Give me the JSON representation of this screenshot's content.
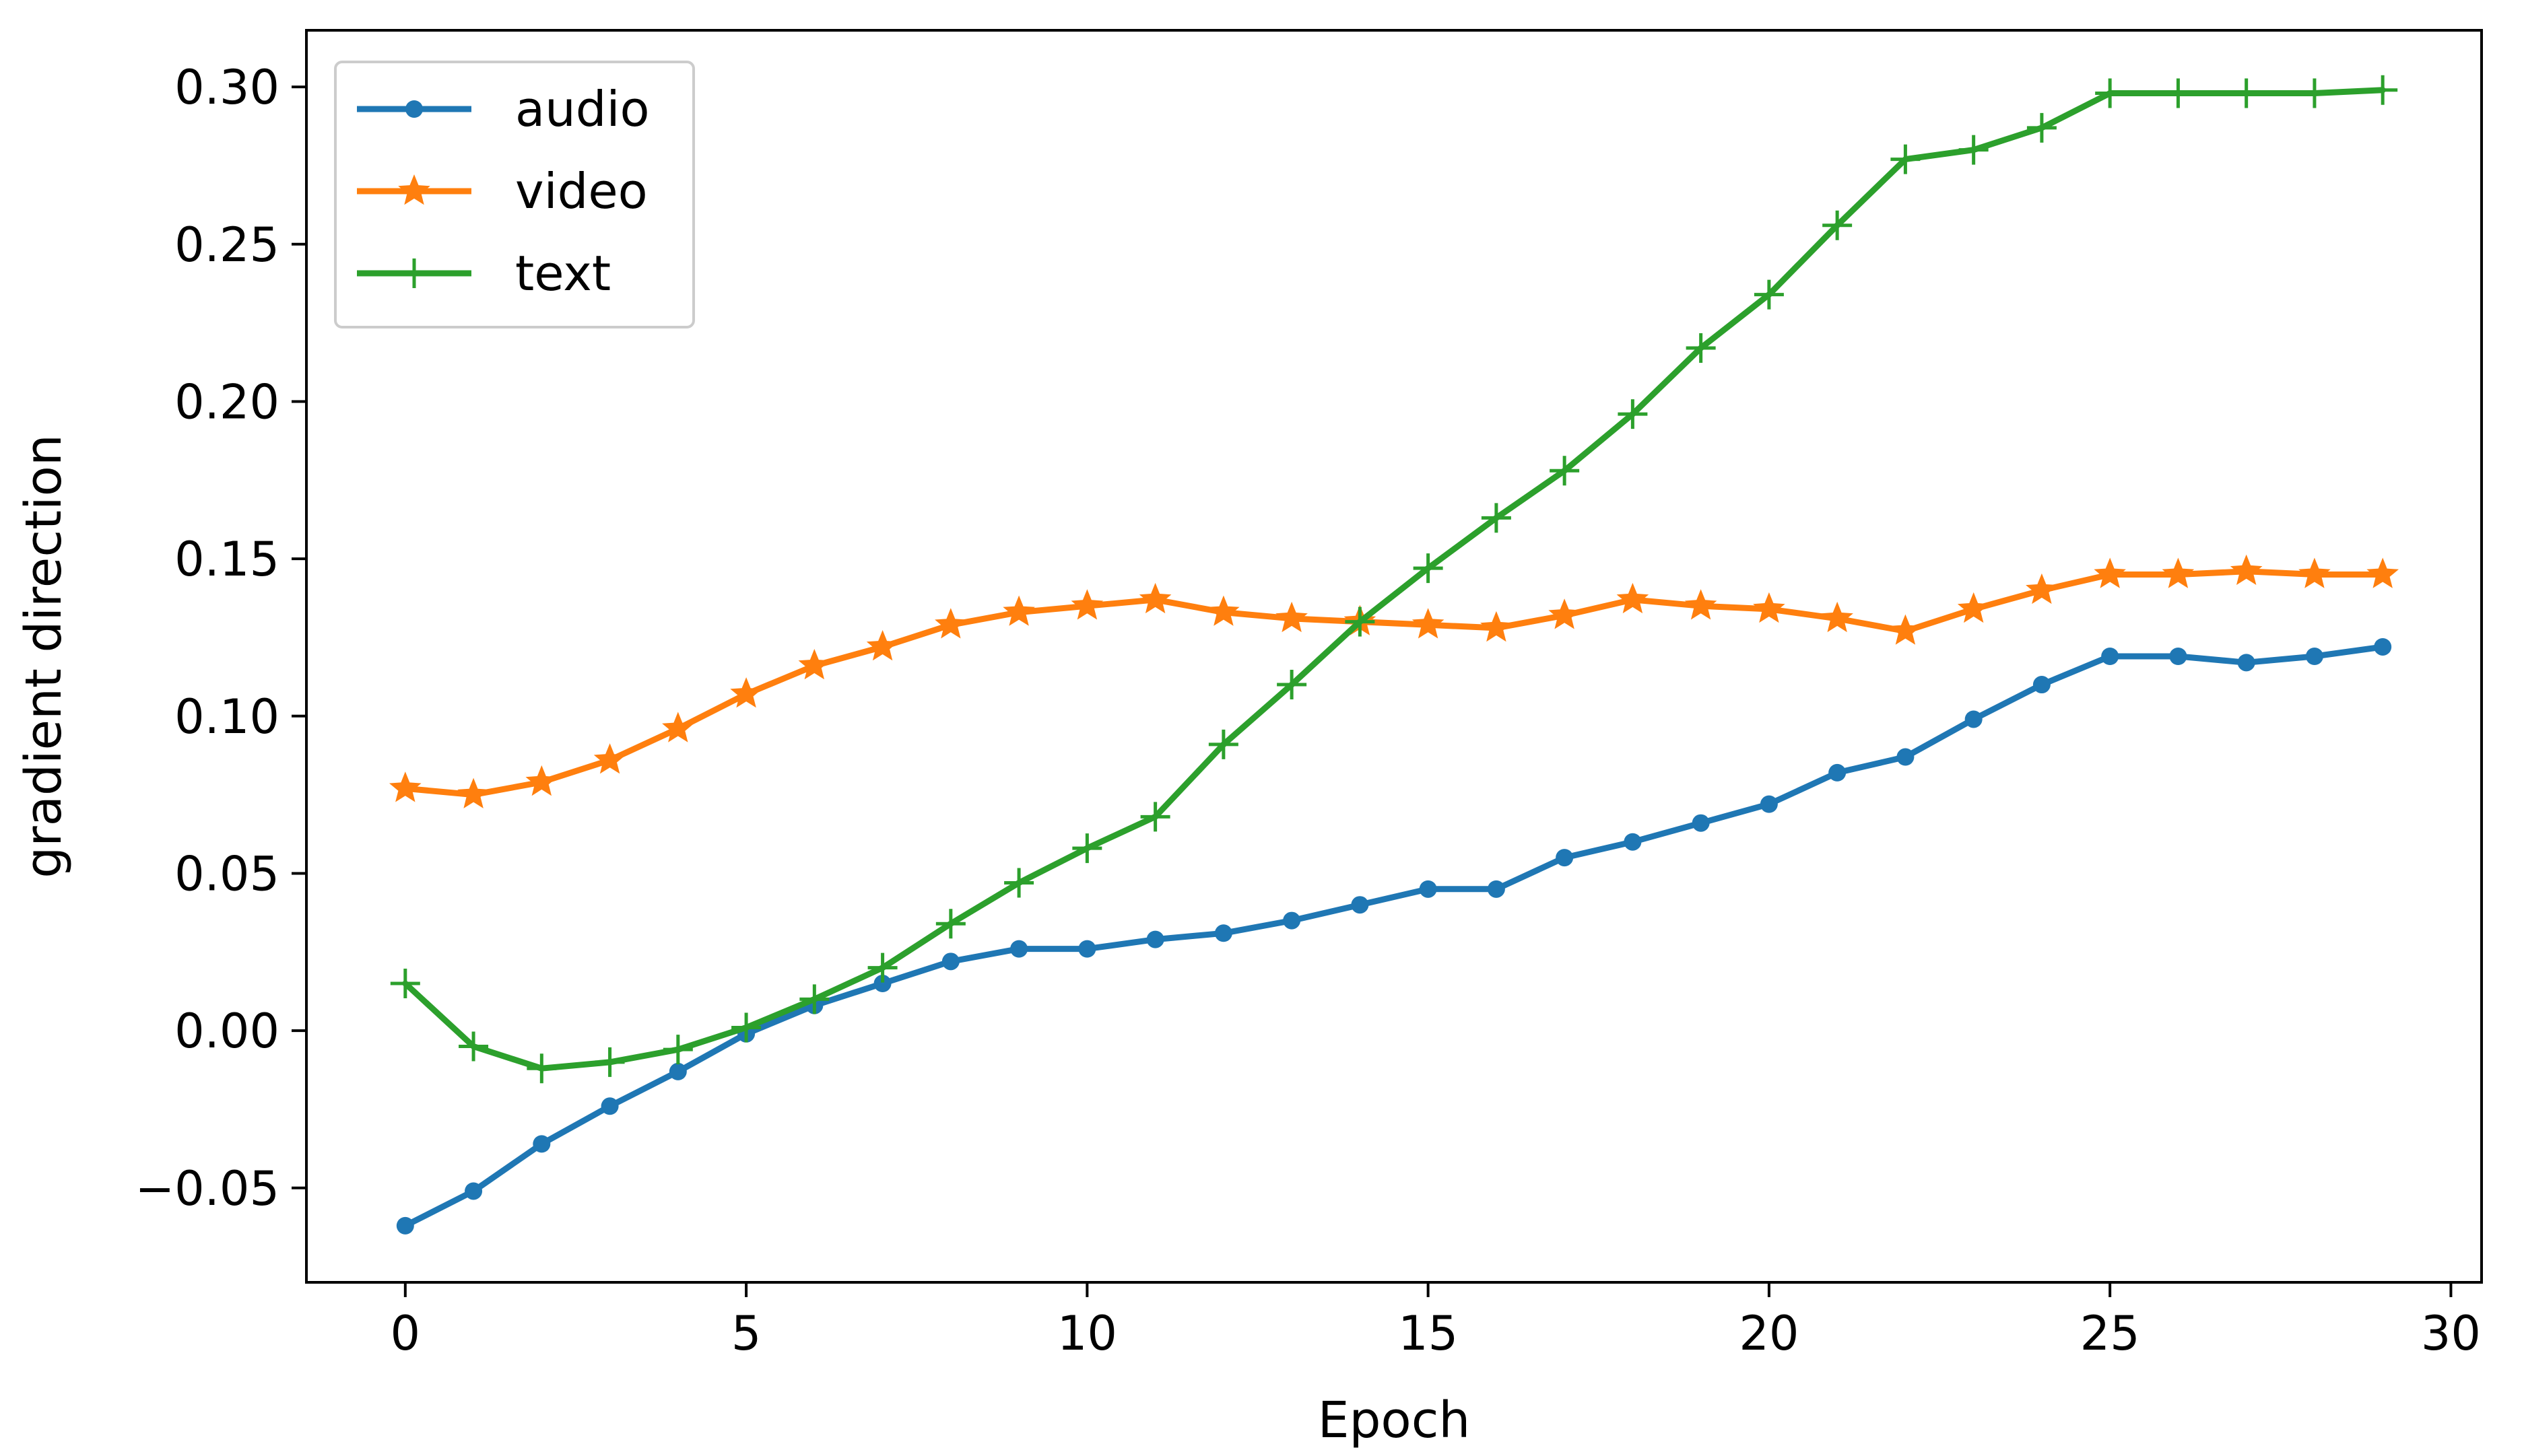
{
  "chart_data": {
    "type": "line",
    "title": "",
    "xlabel": "Epoch",
    "ylabel": "gradient direction",
    "xlim": [
      -1.45,
      30.45
    ],
    "ylim": [
      -0.08,
      0.318
    ],
    "xticks": [
      0,
      5,
      10,
      15,
      20,
      25,
      30
    ],
    "xtick_labels": [
      "0",
      "5",
      "10",
      "15",
      "20",
      "25",
      "30"
    ],
    "yticks": [
      -0.05,
      0.0,
      0.05,
      0.1,
      0.15,
      0.2,
      0.25,
      0.3
    ],
    "ytick_labels": [
      "−0.05",
      "0.00",
      "0.05",
      "0.10",
      "0.15",
      "0.20",
      "0.25",
      "0.30"
    ],
    "grid": false,
    "legend_position": "top-left",
    "x": [
      0,
      1,
      2,
      3,
      4,
      5,
      6,
      7,
      8,
      9,
      10,
      11,
      12,
      13,
      14,
      15,
      16,
      17,
      18,
      19,
      20,
      21,
      22,
      23,
      24,
      25,
      26,
      27,
      28,
      29
    ],
    "series": [
      {
        "name": "audio",
        "marker": "circle",
        "color": "#1f77b4",
        "values": [
          -0.062,
          -0.051,
          -0.036,
          -0.024,
          -0.013,
          -0.001,
          0.008,
          0.015,
          0.022,
          0.026,
          0.026,
          0.029,
          0.031,
          0.035,
          0.04,
          0.045,
          0.045,
          0.055,
          0.06,
          0.066,
          0.072,
          0.082,
          0.087,
          0.099,
          0.11,
          0.119,
          0.119,
          0.117,
          0.119,
          0.122
        ]
      },
      {
        "name": "video",
        "marker": "star",
        "color": "#ff7f0e",
        "values": [
          0.077,
          0.075,
          0.079,
          0.086,
          0.096,
          0.107,
          0.116,
          0.122,
          0.129,
          0.133,
          0.135,
          0.137,
          0.133,
          0.131,
          0.13,
          0.129,
          0.128,
          0.132,
          0.137,
          0.135,
          0.134,
          0.131,
          0.127,
          0.134,
          0.14,
          0.145,
          0.145,
          0.146,
          0.145,
          0.145
        ]
      },
      {
        "name": "text",
        "marker": "plus",
        "color": "#2ca02c",
        "values": [
          0.015,
          -0.005,
          -0.012,
          -0.01,
          -0.006,
          0.001,
          0.01,
          0.02,
          0.034,
          0.047,
          0.058,
          0.068,
          0.091,
          0.11,
          0.13,
          0.147,
          0.163,
          0.178,
          0.196,
          0.217,
          0.234,
          0.256,
          0.277,
          0.28,
          0.287,
          0.298,
          0.298,
          0.298,
          0.298,
          0.299
        ]
      }
    ]
  }
}
